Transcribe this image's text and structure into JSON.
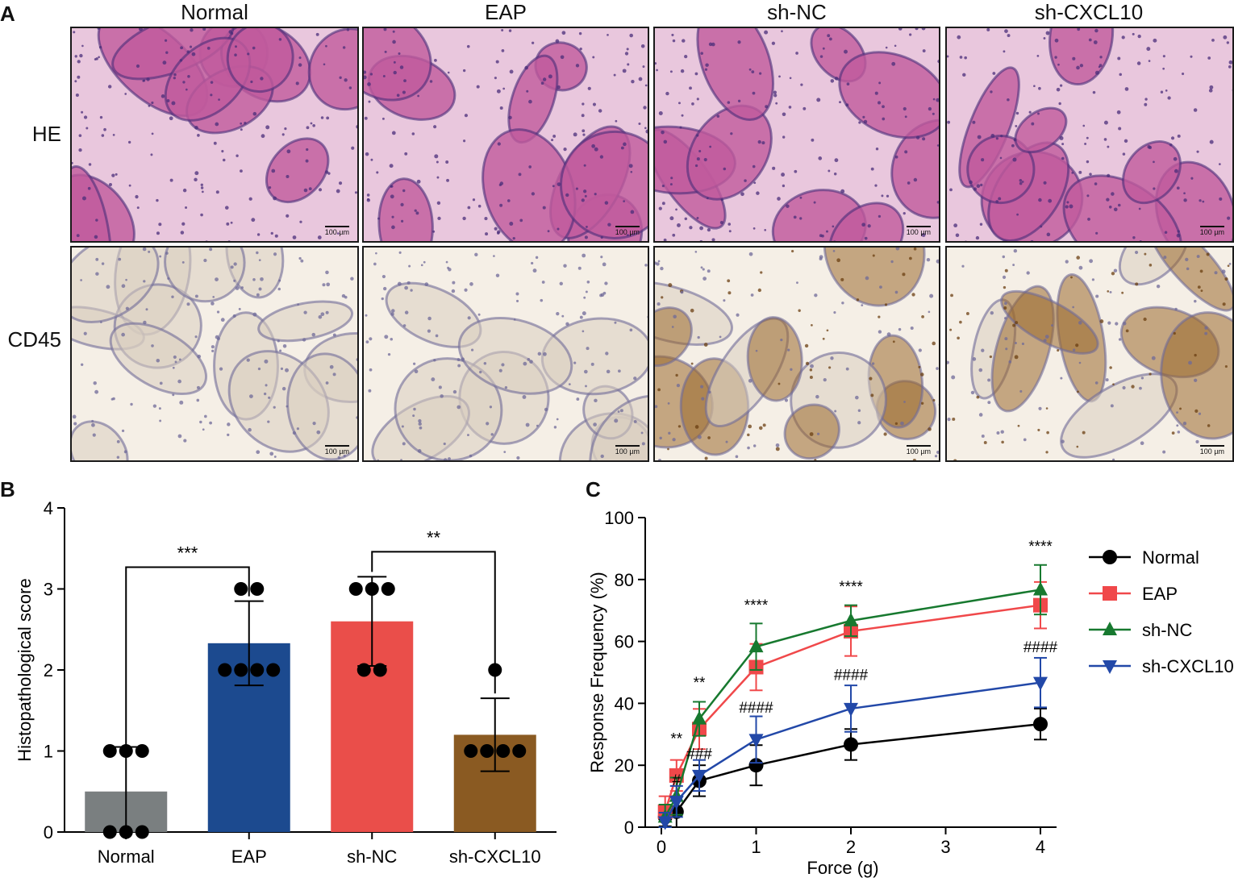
{
  "panels": {
    "a": "A",
    "b": "B",
    "c": "C"
  },
  "histology": {
    "columns": [
      "Normal",
      "EAP",
      "sh-NC",
      "sh-CXCL10"
    ],
    "rows": [
      "HE",
      "CD45"
    ],
    "scale_bar": "100 µm",
    "colors": {
      "he_background": "#e9c7dd",
      "he_tissue": "#c05a9c",
      "he_nuclei": "#4a2d7a",
      "ihc_background": "#f5efe6",
      "ihc_tissue": "#d9cdbf",
      "ihc_stain": "#9a6a2e",
      "ihc_nuclei": "#6f6a98"
    }
  },
  "chart_data": [
    {
      "type": "bar",
      "panel": "B",
      "categories": [
        "Normal",
        "EAP",
        "sh-NC",
        "sh-CXCL10"
      ],
      "values": [
        0.5,
        2.33,
        2.6,
        1.2
      ],
      "error_sd": [
        0.55,
        0.52,
        0.55,
        0.45
      ],
      "points": [
        [
          1,
          1,
          1,
          0,
          0,
          0
        ],
        [
          3,
          3,
          2,
          2,
          2,
          2
        ],
        [
          3,
          3,
          3,
          2,
          2
        ],
        [
          2,
          1,
          1,
          1,
          1
        ]
      ],
      "colors": [
        "#7a7f80",
        "#1c4a8f",
        "#ea4e4a",
        "#8a5a22"
      ],
      "xlabel": "",
      "ylabel": "Histopathological score",
      "ylim": [
        0,
        4
      ],
      "yticks": [
        "0",
        "1",
        "2",
        "3",
        "4"
      ],
      "significance": [
        {
          "pair": [
            "Normal",
            "EAP"
          ],
          "label": "***"
        },
        {
          "pair": [
            "sh-NC",
            "sh-CXCL10"
          ],
          "label": "**"
        }
      ]
    },
    {
      "type": "line",
      "panel": "C",
      "x": [
        0.04,
        0.16,
        0.4,
        1,
        2,
        4
      ],
      "xticks": [
        "0",
        "1",
        "2",
        "3",
        "4"
      ],
      "xlabel": "Force (g)",
      "ylabel": "Response Frequency (%)",
      "ylim": [
        0,
        100
      ],
      "yticks": [
        "0",
        "20",
        "40",
        "60",
        "80",
        "100"
      ],
      "legend_position": "right",
      "series": [
        {
          "name": "Normal",
          "color": "#000000",
          "marker": "circle",
          "values": [
            3.3,
            5,
            15,
            20,
            26.7,
            33.3
          ],
          "error": [
            3,
            5,
            5,
            6.5,
            5,
            5
          ]
        },
        {
          "name": "EAP",
          "color": "#f0484a",
          "marker": "square",
          "values": [
            5,
            16.7,
            31.7,
            51.7,
            63.3,
            71.7
          ],
          "error": [
            5,
            5,
            6.5,
            7.5,
            8,
            7.5
          ]
        },
        {
          "name": "sh-NC",
          "color": "#17792f",
          "marker": "triangle-up",
          "values": [
            3.3,
            10,
            35,
            58.3,
            66.7,
            76.7
          ],
          "error": [
            4,
            6,
            5.5,
            7.5,
            5,
            8
          ]
        },
        {
          "name": "sh-CXCL10",
          "color": "#2248a8",
          "marker": "triangle-down",
          "values": [
            1.7,
            8.3,
            16.7,
            28.3,
            38.3,
            46.7
          ],
          "error": [
            3,
            5,
            5,
            7.5,
            7.5,
            8
          ]
        }
      ],
      "annotations": [
        {
          "x": 0.16,
          "y": 27,
          "label": "**"
        },
        {
          "x": 0.4,
          "y": 45,
          "label": "**"
        },
        {
          "x": 1,
          "y": 70,
          "label": "****"
        },
        {
          "x": 2,
          "y": 76,
          "label": "****"
        },
        {
          "x": 4,
          "y": 89,
          "label": "****"
        },
        {
          "x": 0.16,
          "y": 13.5,
          "label": "#"
        },
        {
          "x": 0.4,
          "y": 22,
          "label": "###"
        },
        {
          "x": 1,
          "y": 37,
          "label": "####"
        },
        {
          "x": 2,
          "y": 47.5,
          "label": "####"
        },
        {
          "x": 4,
          "y": 56.5,
          "label": "####"
        }
      ]
    }
  ]
}
